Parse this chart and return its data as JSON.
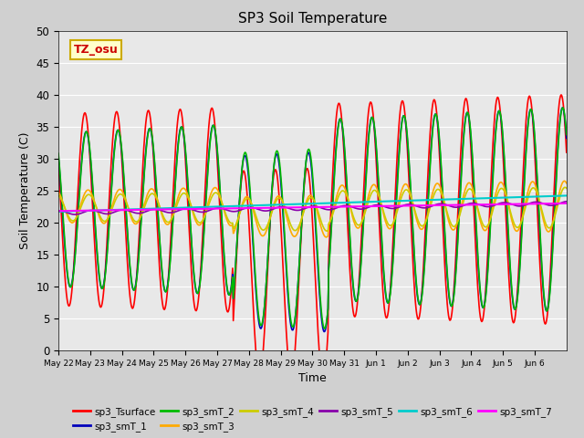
{
  "title": "SP3 Soil Temperature",
  "xlabel": "Time",
  "ylabel": "Soil Temperature (C)",
  "ylim": [
    0,
    50
  ],
  "annotation_text": "TZ_osu",
  "annotation_color": "#cc0000",
  "annotation_bg": "#ffffcc",
  "annotation_border": "#ccaa00",
  "fig_bg": "#d0d0d0",
  "plot_bg": "#e8e8e8",
  "series": {
    "sp3_Tsurface": {
      "color": "#ff0000",
      "lw": 1.2
    },
    "sp3_smT_1": {
      "color": "#0000bb",
      "lw": 1.2
    },
    "sp3_smT_2": {
      "color": "#00bb00",
      "lw": 1.2
    },
    "sp3_smT_3": {
      "color": "#ffaa00",
      "lw": 1.2
    },
    "sp3_smT_4": {
      "color": "#cccc00",
      "lw": 1.2
    },
    "sp3_smT_5": {
      "color": "#8800aa",
      "lw": 1.2
    },
    "sp3_smT_6": {
      "color": "#00cccc",
      "lw": 1.5
    },
    "sp3_smT_7": {
      "color": "#ff00ff",
      "lw": 1.5
    }
  },
  "tick_labels": [
    "May 22",
    "May 23",
    "May 24",
    "May 25",
    "May 26",
    "May 27",
    "May 28",
    "May 29",
    "May 30",
    "May 31",
    "Jun 1",
    "Jun 2",
    "Jun 3",
    "Jun 4",
    "Jun 5",
    "Jun 6"
  ]
}
